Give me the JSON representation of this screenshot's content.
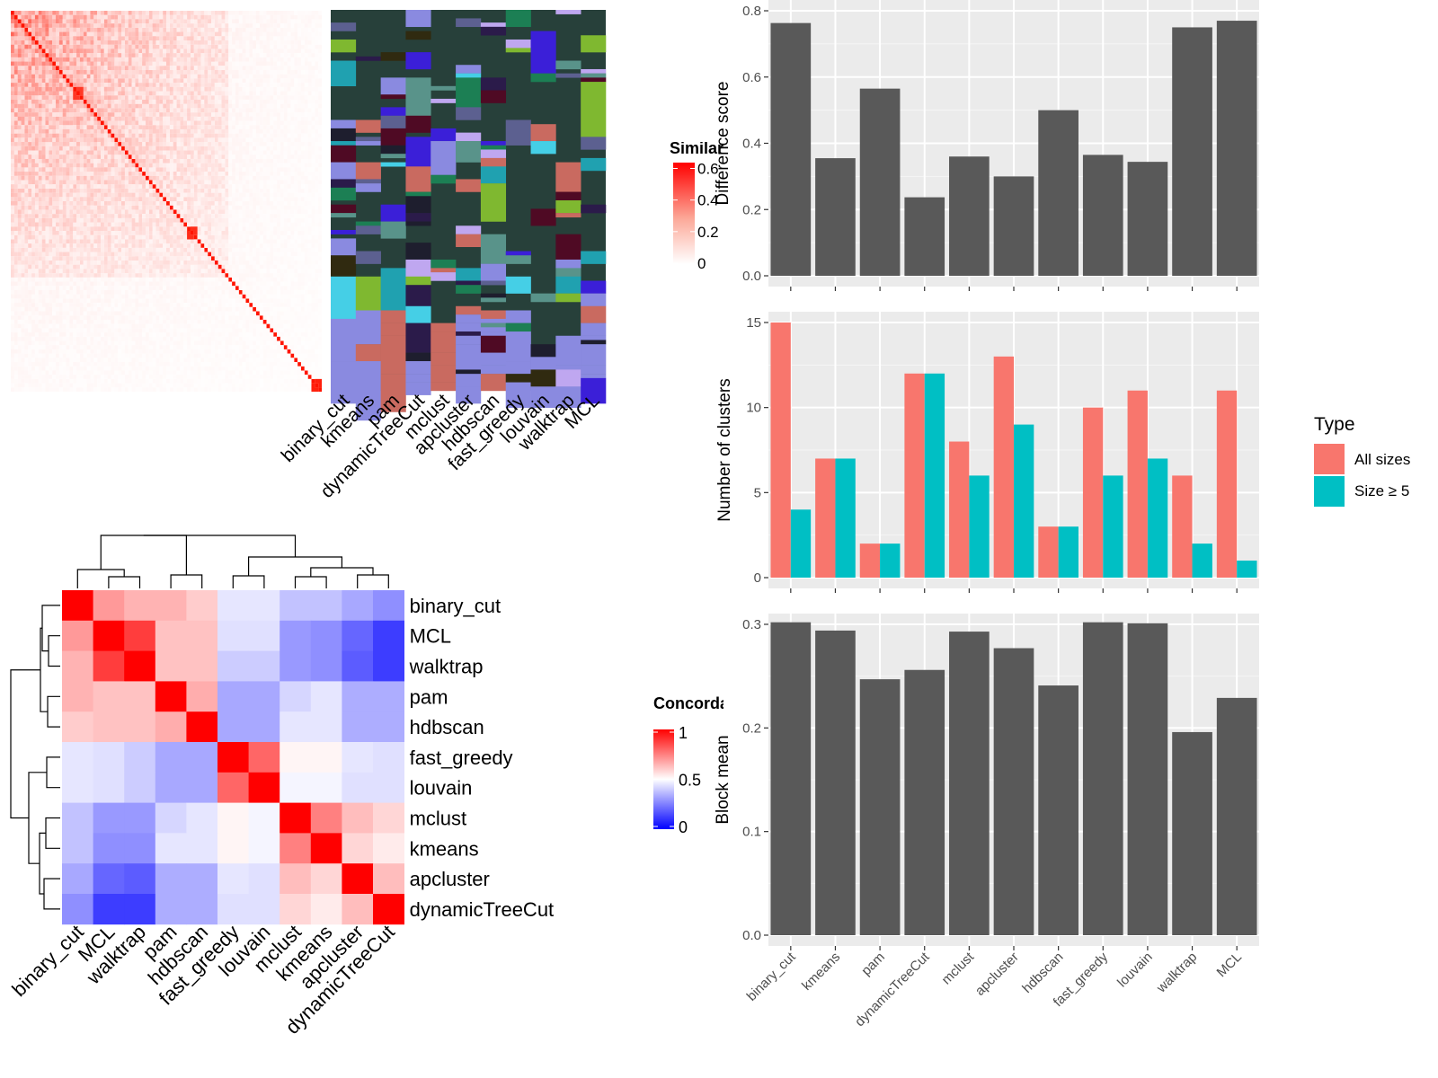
{
  "chart_data": [
    {
      "type": "heatmap",
      "panel": "similarity-matrix",
      "legend_title": "Similarity",
      "legend_ticks": [
        0,
        0.2,
        0.4,
        0.6
      ]
    },
    {
      "type": "heatmap",
      "panel": "cluster-assignments",
      "methods": [
        "binary_cut",
        "kmeans",
        "pam",
        "dynamicTreeCut",
        "mclust",
        "apcluster",
        "hdbscan",
        "fast_greedy",
        "louvain",
        "walktrap",
        "MCL"
      ]
    },
    {
      "type": "heatmap",
      "panel": "concordance",
      "legend_title": "Concordance",
      "legend_ticks": [
        0,
        0.5,
        1
      ],
      "rows": [
        "binary_cut",
        "MCL",
        "walktrap",
        "pam",
        "hdbscan",
        "fast_greedy",
        "louvain",
        "mclust",
        "kmeans",
        "apcluster",
        "dynamicTreeCut"
      ],
      "values": [
        [
          1.0,
          0.7,
          0.65,
          0.65,
          0.6,
          0.45,
          0.45,
          0.38,
          0.38,
          0.33,
          0.28
        ],
        [
          0.7,
          1.0,
          0.88,
          0.62,
          0.62,
          0.44,
          0.44,
          0.3,
          0.28,
          0.2,
          0.12
        ],
        [
          0.65,
          0.88,
          1.0,
          0.62,
          0.62,
          0.4,
          0.4,
          0.3,
          0.28,
          0.18,
          0.12
        ],
        [
          0.65,
          0.62,
          0.62,
          1.0,
          0.66,
          0.33,
          0.33,
          0.42,
          0.45,
          0.34,
          0.34
        ],
        [
          0.6,
          0.62,
          0.62,
          0.66,
          1.0,
          0.33,
          0.33,
          0.45,
          0.45,
          0.34,
          0.34
        ],
        [
          0.45,
          0.44,
          0.4,
          0.33,
          0.33,
          1.0,
          0.8,
          0.52,
          0.52,
          0.45,
          0.44
        ],
        [
          0.45,
          0.44,
          0.4,
          0.33,
          0.33,
          0.8,
          1.0,
          0.48,
          0.48,
          0.44,
          0.44
        ],
        [
          0.38,
          0.3,
          0.3,
          0.42,
          0.45,
          0.52,
          0.48,
          1.0,
          0.75,
          0.63,
          0.58
        ],
        [
          0.38,
          0.28,
          0.28,
          0.45,
          0.45,
          0.52,
          0.48,
          0.75,
          1.0,
          0.58,
          0.54
        ],
        [
          0.33,
          0.2,
          0.18,
          0.34,
          0.34,
          0.45,
          0.44,
          0.63,
          0.58,
          1.0,
          0.63
        ],
        [
          0.28,
          0.12,
          0.12,
          0.34,
          0.34,
          0.44,
          0.44,
          0.58,
          0.54,
          0.63,
          1.0
        ]
      ]
    },
    {
      "type": "bar",
      "panel": "difference-score",
      "categories": [
        "binary_cut",
        "kmeans",
        "pam",
        "dynamicTreeCut",
        "mclust",
        "apcluster",
        "hdbscan",
        "fast_greedy",
        "louvain",
        "walktrap",
        "MCL"
      ],
      "values": [
        0.763,
        0.355,
        0.565,
        0.237,
        0.36,
        0.3,
        0.5,
        0.365,
        0.344,
        0.75,
        0.77
      ],
      "ylabel": "Difference score",
      "ylim": [
        0,
        0.8
      ],
      "yticks": [
        "0.0",
        "0.2",
        "0.4",
        "0.6",
        "0.8"
      ]
    },
    {
      "type": "bar",
      "panel": "number-of-clusters",
      "categories": [
        "binary_cut",
        "kmeans",
        "pam",
        "dynamicTreeCut",
        "mclust",
        "apcluster",
        "hdbscan",
        "fast_greedy",
        "louvain",
        "walktrap",
        "MCL"
      ],
      "series": [
        {
          "name": "All sizes",
          "values": [
            15,
            7,
            2,
            12,
            8,
            13,
            3,
            10,
            11,
            6,
            11
          ]
        },
        {
          "name": "Size ≥ 5",
          "values": [
            4,
            7,
            2,
            12,
            6,
            9,
            3,
            6,
            7,
            2,
            1
          ]
        }
      ],
      "ylabel": "Number of clusters",
      "ylim": [
        0,
        15
      ],
      "yticks": [
        "0",
        "5",
        "10",
        "15"
      ],
      "legend_title": "Type",
      "legend_position": "right"
    },
    {
      "type": "bar",
      "panel": "block-mean",
      "categories": [
        "binary_cut",
        "kmeans",
        "pam",
        "dynamicTreeCut",
        "mclust",
        "apcluster",
        "hdbscan",
        "fast_greedy",
        "louvain",
        "walktrap",
        "MCL"
      ],
      "values": [
        0.302,
        0.294,
        0.247,
        0.256,
        0.293,
        0.277,
        0.241,
        0.302,
        0.301,
        0.196,
        0.229
      ],
      "ylabel": "Block mean",
      "ylim": [
        0,
        0.3
      ],
      "yticks": [
        "0.0",
        "0.1",
        "0.2",
        "0.3"
      ]
    }
  ],
  "colors": {
    "panel_bg": "#ebebeb",
    "bar_grey": "#595959",
    "all_sizes": "#f8766d",
    "size_ge_5": "#00bfc4"
  }
}
